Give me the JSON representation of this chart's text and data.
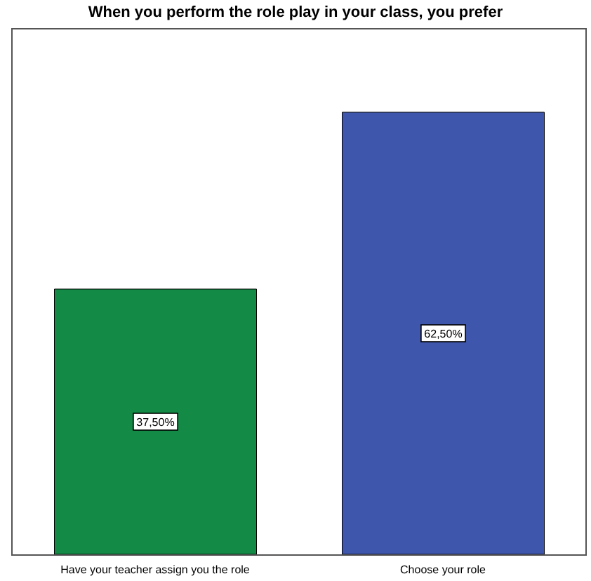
{
  "chart_data": {
    "type": "bar",
    "title": "When you perform the role play in your class, you prefer",
    "categories": [
      "Have your teacher assign you the role",
      "Choose your role"
    ],
    "values": [
      37.5,
      62.5
    ],
    "colors": [
      "#138a46",
      "#3f56ad"
    ],
    "value_labels": [
      "37,50%",
      "62,50%"
    ],
    "ylim": [
      0,
      74.4
    ]
  }
}
